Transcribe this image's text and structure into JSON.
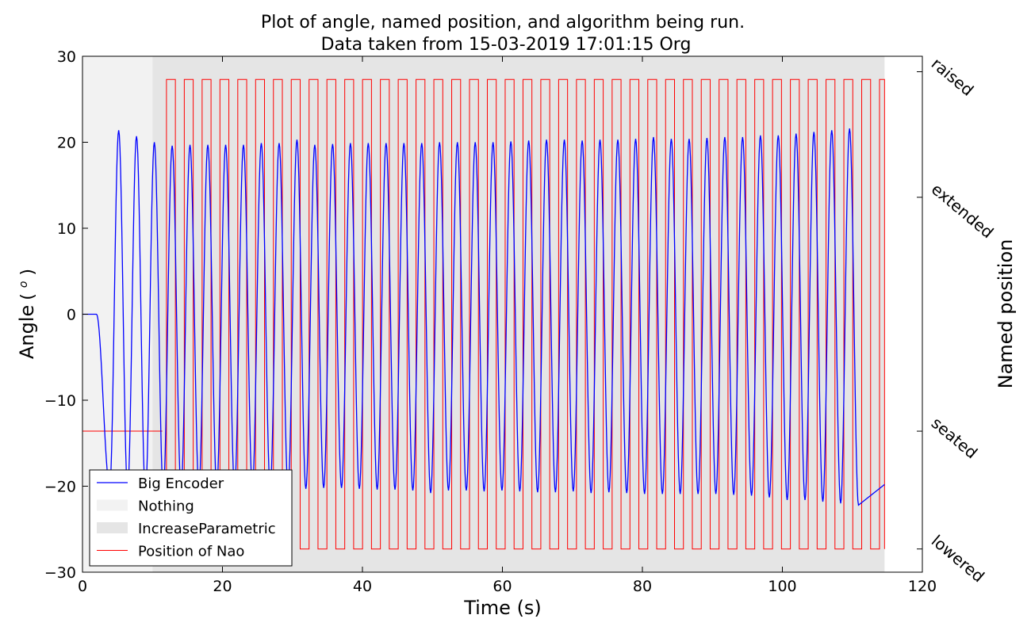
{
  "chart_data": {
    "type": "line",
    "title_line1": "Plot of angle, named position, and algorithm being run.",
    "title_line2": "Data taken from 15-03-2019 17:01:15 Org",
    "xlabel": "Time (s)",
    "ylabel_text": "Angle",
    "ylabel_unit": "( ",
    "ylabel_unit_sup": "o",
    "ylabel_unit_close": " )",
    "y2label": "Named position",
    "xlim": [
      0,
      120
    ],
    "ylim": [
      -30,
      30
    ],
    "x_ticks": [
      0,
      20,
      40,
      60,
      80,
      100,
      120
    ],
    "x_tick_labels": [
      "0",
      "20",
      "40",
      "60",
      "80",
      "100",
      "120"
    ],
    "y_ticks": [
      -30,
      -20,
      -10,
      0,
      10,
      20,
      30
    ],
    "y_tick_labels": [
      "−30",
      "−20",
      "−10",
      "0",
      "10",
      "20",
      "30"
    ],
    "named_positions": [
      {
        "label": "raised",
        "value": 28.2
      },
      {
        "label": "extended",
        "value": 13.6
      },
      {
        "label": "seated",
        "value": -13.6
      },
      {
        "label": "lowered",
        "value": -27.3
      }
    ],
    "regions": [
      {
        "name": "Nothing",
        "x_start": 0,
        "x_end": 10.0,
        "color": "#f2f2f2"
      },
      {
        "name": "IncreaseParametric",
        "x_start": 10.0,
        "x_end": 114.6,
        "color": "#e5e5e5"
      }
    ],
    "series": [
      {
        "name": "Big Encoder",
        "color": "#0000ff",
        "flat_until": 2.0,
        "start_time": 3.1,
        "period": 2.547,
        "end_time": 114.6,
        "peaks": [
          21.4,
          20.7,
          20.0,
          19.6,
          19.7,
          19.7,
          19.7,
          19.7,
          19.9,
          19.9,
          20.3,
          19.7,
          19.8,
          19.9,
          19.9,
          19.9,
          19.9,
          19.9,
          20.0,
          20.0,
          20.0,
          20.0,
          20.1,
          20.2,
          20.3,
          20.3,
          20.2,
          20.3,
          20.3,
          20.4,
          20.6,
          20.4,
          20.4,
          20.5,
          20.6,
          20.6,
          20.8,
          20.8,
          21.0,
          21.2,
          21.4,
          21.6
        ],
        "troughs": [
          -20.0,
          -20.5,
          -20.8,
          -20.6,
          -20.4,
          -20.2,
          -20.1,
          -20.2,
          -20.2,
          -20.2,
          -20.3,
          -20.3,
          -20.2,
          -20.2,
          -20.3,
          -20.4,
          -20.4,
          -20.5,
          -20.8,
          -20.5,
          -20.5,
          -20.6,
          -20.5,
          -20.6,
          -20.7,
          -20.7,
          -20.6,
          -20.8,
          -20.7,
          -20.8,
          -20.9,
          -20.9,
          -20.9,
          -20.9,
          -20.9,
          -21.0,
          -21.1,
          -21.3,
          -21.6,
          -21.6,
          -21.8,
          -22.0,
          -22.2
        ]
      },
      {
        "name": "Position of Nao",
        "color": "#ff0000",
        "initial_value": -13.6,
        "initial_until": 11.4,
        "high": 27.3,
        "low": -27.3,
        "start_time": 12.0,
        "period": 2.547,
        "end_time": 114.6
      }
    ],
    "legend": {
      "position": "lower-left",
      "entries": [
        {
          "label": "Big Encoder",
          "kind": "line",
          "color": "#0000ff"
        },
        {
          "label": "Nothing",
          "kind": "patch",
          "color": "#f2f2f2"
        },
        {
          "label": "IncreaseParametric",
          "kind": "patch",
          "color": "#e5e5e5"
        },
        {
          "label": "Position of Nao",
          "kind": "line",
          "color": "#ff0000"
        }
      ]
    }
  }
}
